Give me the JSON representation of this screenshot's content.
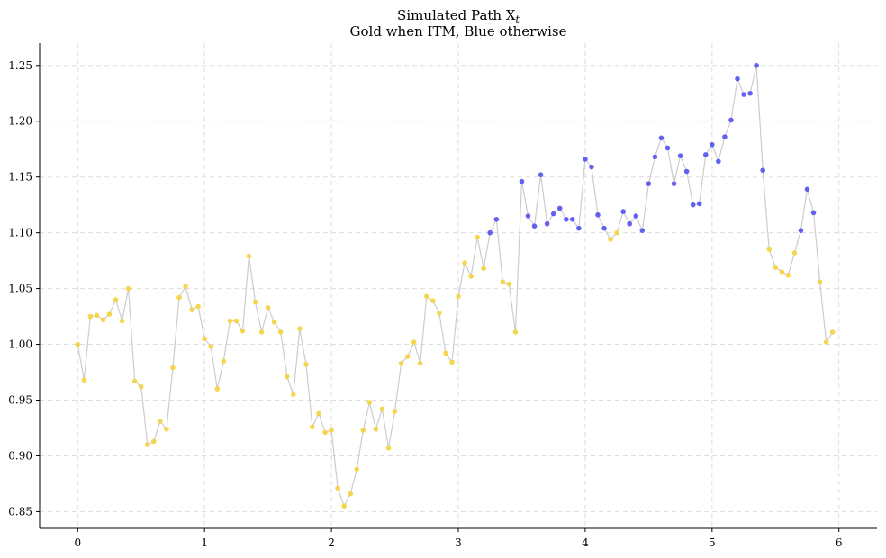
{
  "chart_data": {
    "type": "scatter",
    "title": "Simulated Path X",
    "title_subscript": "t",
    "subtitle": "Gold when ITM, Blue otherwise",
    "xlim": [
      -0.3,
      6.3
    ],
    "ylim": [
      0.835,
      1.27
    ],
    "xticks": [
      0,
      1,
      2,
      3,
      4,
      5,
      6
    ],
    "xtick_labels": [
      "0",
      "1",
      "2",
      "3",
      "4",
      "5",
      "6"
    ],
    "yticks": [
      0.85,
      0.9,
      0.95,
      1.0,
      1.05,
      1.1,
      1.15,
      1.2,
      1.25
    ],
    "ytick_labels": [
      "0.85",
      "0.90",
      "0.95",
      "1.00",
      "1.05",
      "1.10",
      "1.15",
      "1.20",
      "1.25"
    ],
    "grid": true,
    "colors": {
      "itm": "#f5d33f",
      "otm": "#4a48f0",
      "line": "#cccccc"
    },
    "x_step": 0.05,
    "y": [
      1.0,
      0.968,
      1.025,
      1.026,
      1.022,
      1.027,
      1.04,
      1.021,
      1.05,
      0.967,
      0.962,
      0.91,
      0.913,
      0.931,
      0.924,
      0.979,
      1.042,
      1.052,
      1.031,
      1.034,
      1.005,
      0.998,
      0.96,
      0.985,
      1.021,
      1.021,
      1.012,
      1.079,
      1.038,
      1.011,
      1.033,
      1.02,
      1.011,
      0.971,
      0.955,
      1.014,
      0.982,
      0.926,
      0.938,
      0.921,
      0.923,
      0.871,
      0.855,
      0.866,
      0.888,
      0.923,
      0.948,
      0.924,
      0.942,
      0.907,
      0.94,
      0.983,
      0.989,
      1.002,
      0.983,
      1.043,
      1.039,
      1.028,
      0.992,
      0.984,
      1.043,
      1.073,
      1.061,
      1.096,
      1.068,
      1.1,
      1.112,
      1.056,
      1.054,
      1.011,
      1.146,
      1.115,
      1.106,
      1.152,
      1.108,
      1.117,
      1.122,
      1.112,
      1.112,
      1.104,
      1.166,
      1.159,
      1.116,
      1.104,
      1.094,
      1.1,
      1.119,
      1.108,
      1.115,
      1.102,
      1.144,
      1.168,
      1.185,
      1.176,
      1.144,
      1.169,
      1.155,
      1.125,
      1.126,
      1.17,
      1.179,
      1.164,
      1.186,
      1.201,
      1.238,
      1.224,
      1.225,
      1.25,
      1.156,
      1.085,
      1.069,
      1.065,
      1.062,
      1.082,
      1.102,
      1.139,
      1.118,
      1.056,
      1.002,
      1.011
    ],
    "itm": [
      1,
      1,
      1,
      1,
      1,
      1,
      1,
      1,
      1,
      1,
      1,
      1,
      1,
      1,
      1,
      1,
      1,
      1,
      1,
      1,
      1,
      1,
      1,
      1,
      1,
      1,
      1,
      1,
      1,
      1,
      1,
      1,
      1,
      1,
      1,
      1,
      1,
      1,
      1,
      1,
      1,
      1,
      1,
      1,
      1,
      1,
      1,
      1,
      1,
      1,
      1,
      1,
      1,
      1,
      1,
      1,
      1,
      1,
      1,
      1,
      1,
      1,
      1,
      1,
      1,
      0,
      0,
      1,
      1,
      1,
      0,
      0,
      0,
      0,
      0,
      0,
      0,
      0,
      0,
      0,
      0,
      0,
      0,
      0,
      1,
      1,
      0,
      0,
      0,
      0,
      0,
      0,
      0,
      0,
      0,
      0,
      0,
      0,
      0,
      0,
      0,
      0,
      0,
      0,
      0,
      0,
      0,
      0,
      0,
      1,
      1,
      1,
      1,
      1,
      0,
      0,
      0,
      1,
      1,
      1
    ]
  }
}
